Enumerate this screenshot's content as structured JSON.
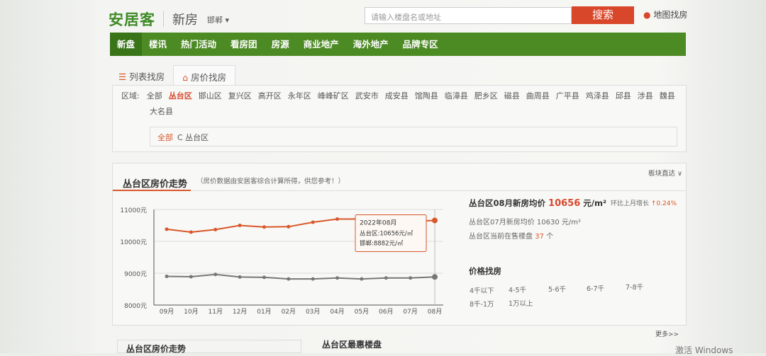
{
  "header": {
    "logo": "安居客",
    "section": "新房",
    "city": "邯郸 ▾",
    "search_placeholder": "请输入楼盘名或地址",
    "search_button": "搜索",
    "map_link": "地图找房"
  },
  "nav": [
    "新盘",
    "楼讯",
    "热门活动",
    "看房团",
    "房源",
    "商业地产",
    "海外地产",
    "品牌专区"
  ],
  "tabs": [
    {
      "label": "列表找房",
      "icon": "list-icon"
    },
    {
      "label": "房价找房",
      "icon": "house-icon"
    }
  ],
  "filter": {
    "label": "区域:",
    "areas": [
      "全部",
      "丛台区",
      "邯山区",
      "复兴区",
      "高开区",
      "永年区",
      "峰峰矿区",
      "武安市",
      "成安县",
      "馆陶县",
      "临漳县",
      "肥乡区",
      "磁县",
      "曲周县",
      "广平县",
      "鸡泽县",
      "邱县",
      "涉县",
      "魏县",
      "大名县"
    ],
    "selected": "丛台区",
    "breadcrumb_all": "全部",
    "breadcrumb_current": "C 丛台区"
  },
  "trend": {
    "title": "丛台区房价走势",
    "note": "（房价数据由安居客综合计算所得，供您参考！）",
    "block_direct": "板块直达 ∨"
  },
  "chart_data": {
    "type": "line",
    "categories": [
      "09月",
      "10月",
      "11月",
      "12月",
      "01月",
      "02月",
      "03月",
      "04月",
      "05月",
      "06月",
      "07月",
      "08月"
    ],
    "yticks": [
      "11000元",
      "10000元",
      "9000元",
      "8000元"
    ],
    "ylim": [
      8000,
      11000
    ],
    "grid": true,
    "series": [
      {
        "name": "丛台区",
        "color": "#d9572b",
        "values": [
          10380,
          10290,
          10370,
          10500,
          10450,
          10460,
          10600,
          10700,
          10700,
          10690,
          10630,
          10656
        ]
      },
      {
        "name": "邯郸",
        "color": "#777777",
        "values": [
          8900,
          8890,
          8960,
          8880,
          8870,
          8820,
          8820,
          8850,
          8820,
          8850,
          8850,
          8882
        ]
      }
    ],
    "tooltip": {
      "title": "2022年08月",
      "line1": "丛台区:10656元/㎡",
      "line2": "邯郸:8882元/㎡"
    }
  },
  "info": {
    "main_label": "丛台区08月新房均价",
    "main_price": "10656",
    "main_unit": "元/m²",
    "growth_label": "环比上月增长",
    "growth_value": "↑0.24%",
    "prev_label": "丛台区07月新房均价",
    "prev_price": "10630",
    "prev_unit": "元/m²",
    "onsale_label": "丛台区当前在售楼盘",
    "onsale_count": "37",
    "onsale_unit": "个"
  },
  "price_find": {
    "title": "价格找房",
    "ranges": [
      "4千以下",
      "4-5千",
      "5-6千",
      "6-7千",
      "7-8千",
      "8千-1万",
      "1万以上"
    ]
  },
  "more": "更多>>",
  "bottom": {
    "left_title": "丛台区房价走势",
    "right_title": "丛台区最惠楼盘"
  },
  "os_watermark": "激活 Windows"
}
